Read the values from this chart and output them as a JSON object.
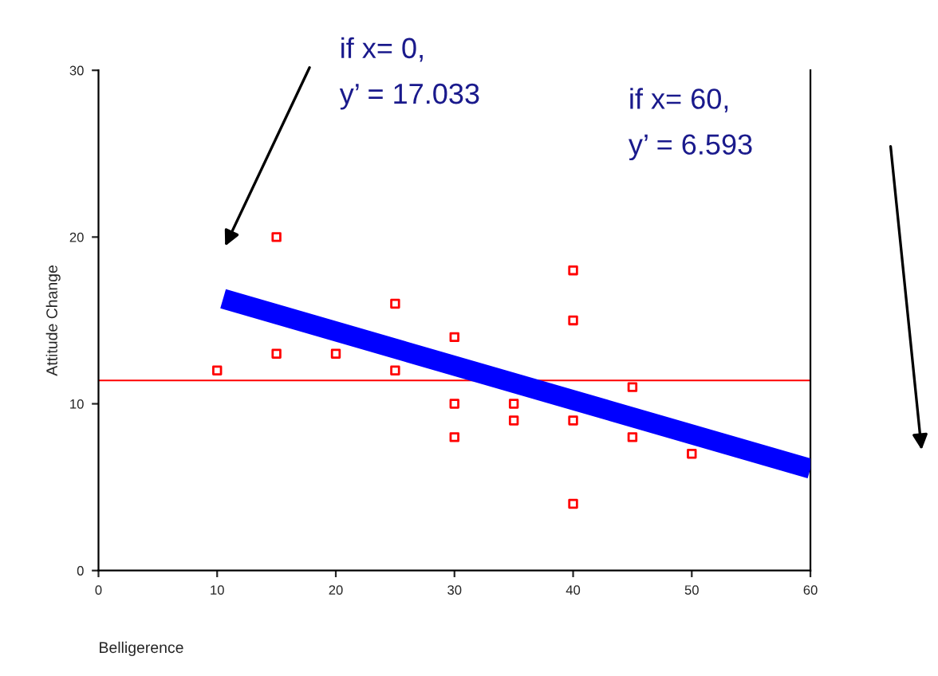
{
  "chart_data": {
    "type": "scatter",
    "xlabel": "Belligerence",
    "ylabel": "Attitude Change",
    "xlim": [
      0,
      60
    ],
    "ylim": [
      0,
      30
    ],
    "xticks": [
      0,
      10,
      20,
      30,
      40,
      50,
      60
    ],
    "yticks": [
      0,
      10,
      20,
      30
    ],
    "marker": "square",
    "grid": false,
    "legend": false,
    "series": [
      {
        "color": "#ff0000",
        "x": [
          10,
          15,
          15,
          20,
          25,
          25,
          30,
          30,
          30,
          35,
          35,
          40,
          40,
          40,
          40,
          45,
          45,
          50
        ],
        "values": [
          12,
          20,
          13,
          13,
          16,
          12,
          14,
          10,
          8,
          10,
          9,
          18,
          15,
          9,
          4,
          11,
          8,
          7
        ]
      },
      {
        "type": "line",
        "color": "#0000ff",
        "marker": "none",
        "x": [
          10.5,
          60
        ],
        "values": [
          16.3,
          6.1
        ]
      }
    ],
    "ref_lines": [
      {
        "axis": "y",
        "value": 11.4,
        "color": "#ff0000",
        "line_style": "solid"
      }
    ],
    "annotations": [
      "if x= 0,\ny’ = 17.033",
      "if x= 60,\ny’ = 6.593"
    ]
  }
}
